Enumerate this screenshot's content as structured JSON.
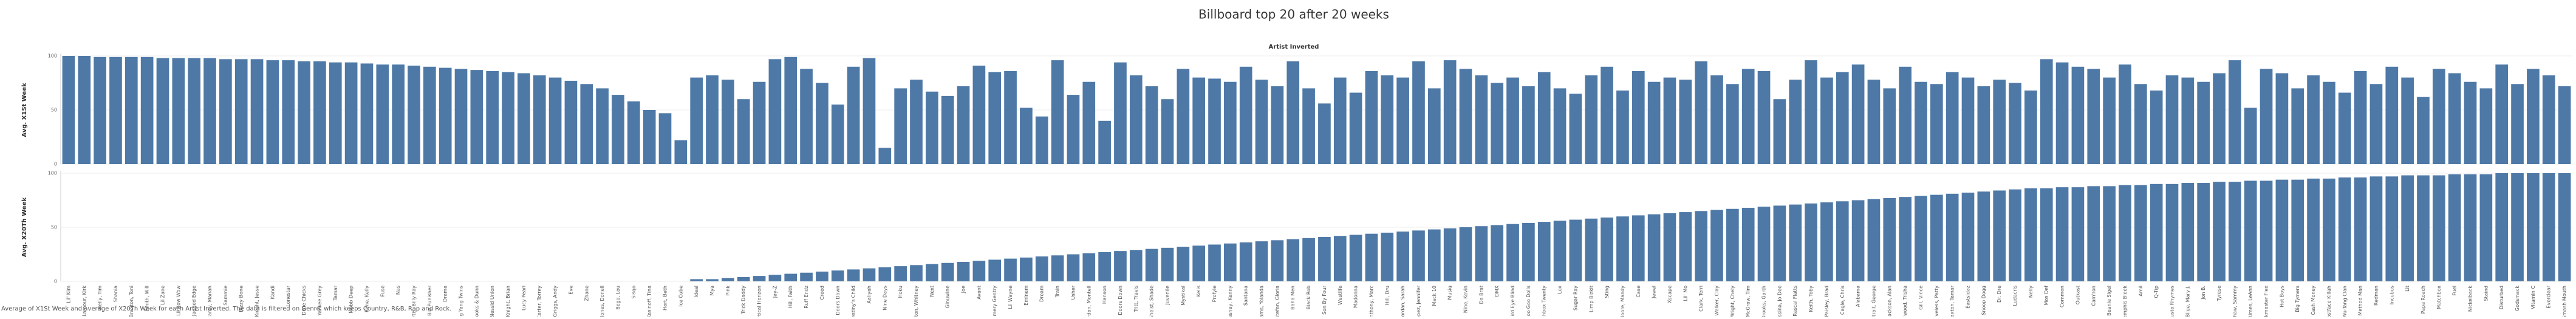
{
  "chart_data": {
    "type": "bar",
    "title": "Billboard top 20 after 20 weeks",
    "subtitle": "Artist Inverted",
    "footer": "Average of X1St Week and average of X20Th Week for each Artist Inverted. The data is filtered on Genre, which keeps Country, R&B, Rap and Rock.",
    "color": "#4e79a7",
    "grid": true,
    "ylim": [
      0,
      100
    ],
    "yticks": [
      0,
      50,
      100
    ],
    "categories": [
      "Lil' Kim",
      "Lamour, Kirk",
      "Nelly, Tim",
      "Shania",
      "Braxton, Toni",
      "Smith, Will",
      "Lil Zane",
      "Lil Bow Wow",
      "Jagged Edge",
      "Carey, Mariah",
      "Sammie",
      "Bizzy Bone",
      "Knight, Jesse",
      "Kandi",
      "Lonestar",
      "Dixie Chicks",
      "Yankee Grey",
      "Tamar",
      "Mobb Deep",
      "Kane, Kelly",
      "Fuse",
      "Nas",
      "Curtis, Billy Ray",
      "Big Punisher",
      "Drama",
      "Ying Yang Twins",
      "Brooks & Dunn",
      "Blessid Union",
      "McKnight, Brian",
      "Lucy Pearl",
      "Carter, Torrey",
      "Griggs, Andy",
      "Eve",
      "Zhane",
      "Jones, Donell",
      "Bega, Lou",
      "Sisqo",
      "Kasinoff, Tina",
      "Hart, Beth",
      "Ice Cube",
      "Ideal",
      "Mya",
      "Pink",
      "Trick Daddy",
      "Vertical Horizon",
      "Jay-Z",
      "Hill, Faith",
      "Ruff Endz",
      "Creed",
      "3 Doors Down",
      "Destiny's Child",
      "Aaliyah",
      "Nine Days",
      "Hoku",
      "Houston, Whitney",
      "Next",
      "Ginuwine",
      "Joe",
      "Avant",
      "Montgomery Gentry",
      "Lil Wayne",
      "Eminem",
      "Dream",
      "Train",
      "Usher",
      "Jordan, Montell",
      "Hanson",
      "Doors Down",
      "Tritt, Travis",
      "Sheist, Shade",
      "Juvenile",
      "Mystikal",
      "Kelis",
      "Profyle",
      "Chesney, Kenny",
      "Santana",
      "Adams, Yolanda",
      "Estefan, Gloria",
      "Baha Men",
      "Black Rob",
      "Son By Four",
      "Westlife",
      "Madonna",
      "Anthony, Marc",
      "Hill, Dru",
      "Jordan, Sarah",
      "Lopez, Jennifer",
      "Mack 10",
      "Musiq",
      "Nine, Kevin",
      "Da Brat",
      "DMX",
      "Third Eye Blind",
      "Goo Goo Dolls",
      "Matchbox Twenty",
      "Lox",
      "Sugar Ray",
      "Limp Bizkit",
      "Sting",
      "Moore, Mandy",
      "Case",
      "Jewel",
      "Xscape",
      "Lil' Mo",
      "Clark, Terri",
      "Walker, Clay",
      "Wright, Chely",
      "McGraw, Tim",
      "Brooks, Garth",
      "Messina, Jo Dee",
      "Rascal Flatts",
      "Keith, Toby",
      "Paisley, Brad",
      "Cagle, Chris",
      "Alabama",
      "Strait, George",
      "Jackson, Alan",
      "Yearwood, Trisha",
      "Gill, Vince",
      "Loveless, Patty",
      "Braxton, Tamar",
      "Eastsidaz",
      "Snoop Dogg",
      "Dr. Dre",
      "Ludacris",
      "Nelly",
      "Mos Def",
      "Common",
      "Outkast",
      "Cam'ron",
      "Beanie Sigel",
      "Memphis Bleek",
      "Amil",
      "Q-Tip",
      "Busta Rhymes",
      "Blige, Mary J.",
      "Jon B.",
      "Tyrese",
      "Kershaw, Sammy",
      "Rimes, LeAnn",
      "Funkmaster Flex",
      "Hot Boys",
      "Big Tymers",
      "Cash Money",
      "Ghostface Killah",
      "Wu-Tang Clan",
      "Method Man",
      "Redman",
      "Incubus",
      "Lit",
      "Papa Roach",
      "Matchbox",
      "Fuel",
      "Nickelback",
      "Staind",
      "Disturbed",
      "Godsmack",
      "Vitamin C",
      "Everclear",
      "Smash Mouth"
    ],
    "series": [
      {
        "name": "Avg. X1St Week",
        "values": [
          100,
          100,
          99,
          99,
          99,
          99,
          98,
          98,
          98,
          98,
          97,
          97,
          97,
          96,
          96,
          95,
          95,
          94,
          94,
          93,
          92,
          92,
          91,
          90,
          89,
          88,
          87,
          86,
          85,
          84,
          82,
          80,
          77,
          74,
          70,
          64,
          58,
          50,
          47,
          22,
          80,
          82,
          78,
          60,
          76,
          97,
          99,
          88,
          75,
          55,
          90,
          98,
          15,
          70,
          78,
          67,
          63,
          72,
          91,
          85,
          86,
          52,
          44,
          96,
          64,
          76,
          40,
          94,
          82,
          72,
          60,
          88,
          80,
          79,
          76,
          90,
          78,
          72,
          95,
          70,
          56,
          80,
          66,
          86,
          82,
          80,
          95,
          70,
          96,
          88,
          82,
          75,
          80,
          72,
          85,
          70,
          65,
          82,
          90,
          68,
          86,
          76,
          80,
          78,
          95,
          82,
          74,
          88,
          86,
          60,
          78,
          96,
          80,
          85,
          92,
          78,
          70,
          90,
          76,
          74,
          85,
          80,
          72,
          78,
          75,
          68,
          97,
          94,
          90,
          88,
          80,
          92,
          74,
          68,
          82,
          80,
          76,
          84,
          96,
          52,
          88,
          84,
          70,
          82,
          76,
          66,
          86,
          74,
          90,
          80,
          62,
          88,
          84,
          76,
          70,
          92,
          74,
          88,
          82,
          72
        ]
      },
      {
        "name": "Avg. X20Th Week",
        "values": [
          null,
          null,
          null,
          null,
          null,
          null,
          null,
          null,
          null,
          null,
          null,
          null,
          null,
          null,
          null,
          null,
          null,
          null,
          null,
          null,
          null,
          null,
          null,
          null,
          null,
          null,
          null,
          null,
          null,
          null,
          null,
          null,
          null,
          null,
          null,
          null,
          null,
          null,
          null,
          null,
          2,
          2,
          3,
          4,
          5,
          6,
          7,
          8,
          9,
          10,
          11,
          12,
          13,
          14,
          15,
          16,
          17,
          18,
          19,
          20,
          21,
          22,
          23,
          24,
          25,
          26,
          27,
          28,
          29,
          30,
          31,
          32,
          33,
          34,
          35,
          36,
          37,
          38,
          39,
          40,
          41,
          42,
          43,
          44,
          45,
          46,
          47,
          48,
          49,
          50,
          51,
          52,
          53,
          54,
          55,
          56,
          57,
          58,
          59,
          60,
          61,
          62,
          63,
          64,
          65,
          66,
          67,
          68,
          69,
          70,
          71,
          72,
          73,
          74,
          75,
          76,
          77,
          78,
          79,
          80,
          81,
          82,
          83,
          84,
          85,
          86,
          86,
          87,
          87,
          88,
          88,
          89,
          89,
          90,
          90,
          91,
          91,
          92,
          92,
          93,
          93,
          94,
          94,
          95,
          95,
          96,
          96,
          97,
          97,
          98,
          98,
          98,
          99,
          99,
          99,
          100,
          100,
          100,
          100,
          100
        ]
      }
    ]
  }
}
